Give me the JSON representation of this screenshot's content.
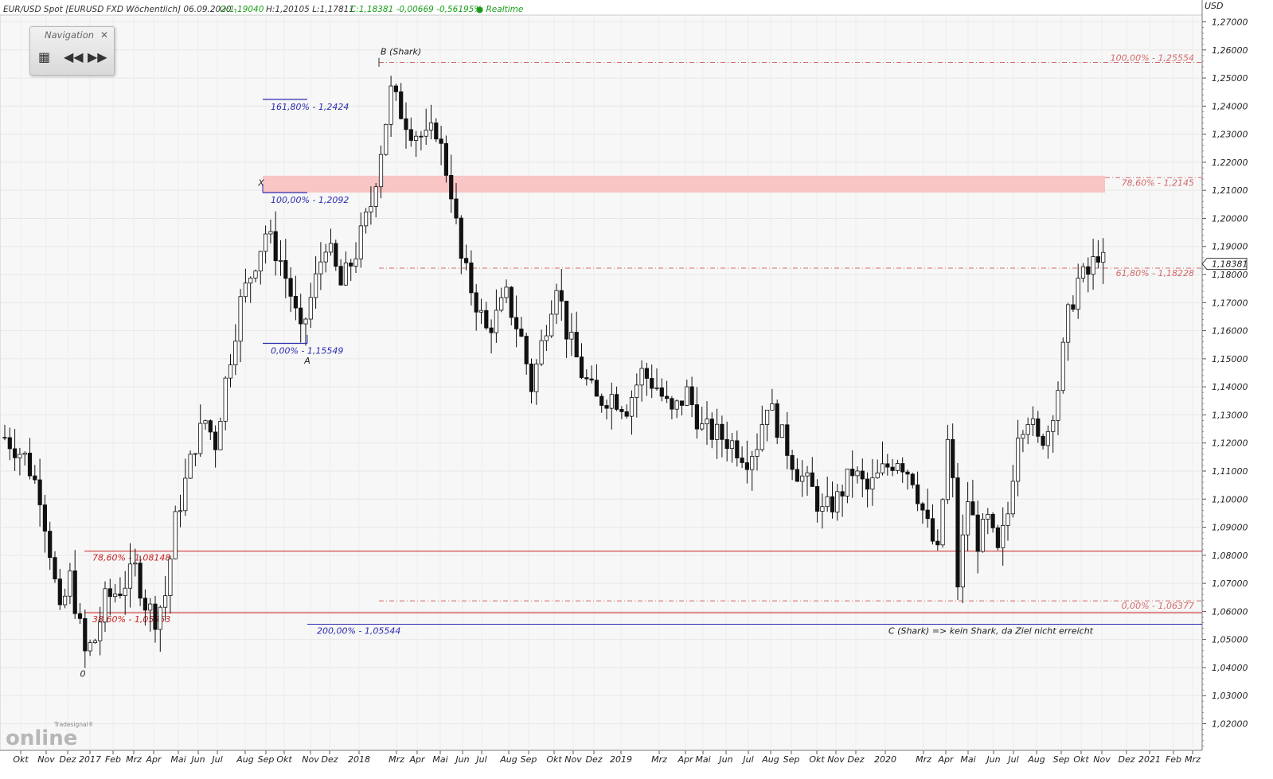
{
  "header": {
    "symbol": "EUR/USD Spot [EURUSD FXD Wöchentlich] 06.09.2020 -",
    "ohlc": "O:1,19040",
    "hl": "H:1,20105 L:1,17811",
    "close": "C:1,18381 -0,00669 -0,56195%",
    "realtime": "● Realtime"
  },
  "navigation": {
    "title": "Navigation",
    "close_icon": "close-icon",
    "buttons": [
      "grid-icon",
      "rewind-icon",
      "fast-forward-icon"
    ]
  },
  "logo": {
    "small": "Tradesignal®",
    "big": "online"
  },
  "colors": {
    "up": "#ffffff",
    "down": "#111111",
    "blue": "#2b2bb0",
    "red": "#cc2222",
    "fib": "#d46a6a",
    "zone": "#f9bcbc",
    "price_green": "#1a9e1a"
  },
  "chart_data": {
    "type": "candlestick",
    "timeframe": "weekly",
    "ylabel": "USD",
    "ylim": [
      1.015,
      1.275
    ],
    "y_ticks": [
      "1,27000",
      "1,26000",
      "1,25000",
      "1,24000",
      "1,23000",
      "1,22000",
      "1,21000",
      "1,20000",
      "1,19000",
      "1,18000",
      "1,17000",
      "1,16000",
      "1,15000",
      "1,14000",
      "1,13000",
      "1,12000",
      "1,11000",
      "1,10000",
      "1,09000",
      "1,08000",
      "1,07000",
      "1,06000",
      "1,05000",
      "1,04000",
      "1,03000",
      "1,02000"
    ],
    "last_price": "1,18381",
    "x_labels": [
      "Okt",
      "Nov",
      "Dez",
      "2017",
      "Feb",
      "Mrz",
      "Apr",
      "Mai",
      "Jun",
      "Jul",
      "Aug",
      "Sep",
      "Okt",
      "Nov",
      "Dez",
      "2018",
      "Mrz",
      "Apr",
      "Mai",
      "Jun",
      "Jul",
      "Aug",
      "Sep",
      "Okt",
      "Nov",
      "Dez",
      "2019",
      "Mrz",
      "Apr",
      "Mai",
      "Jun",
      "Jul",
      "Aug",
      "Sep",
      "Okt",
      "Nov",
      "Dez",
      "2020",
      "Mrz",
      "Apr",
      "Mai",
      "Jun",
      "Jul",
      "Aug",
      "Sep",
      "Okt",
      "Nov",
      "Dez",
      "2021",
      "Feb",
      "Mrz"
    ],
    "anchors": [
      {
        "w": 0,
        "p": 1.122
      },
      {
        "w": 4,
        "p": 1.115
      },
      {
        "w": 7,
        "p": 1.102
      },
      {
        "w": 9,
        "p": 1.082
      },
      {
        "w": 11,
        "p": 1.058
      },
      {
        "w": 13,
        "p": 1.072
      },
      {
        "w": 16,
        "p": 1.045
      },
      {
        "w": 18,
        "p": 1.05
      },
      {
        "w": 20,
        "p": 1.064
      },
      {
        "w": 23,
        "p": 1.068
      },
      {
        "w": 26,
        "p": 1.075
      },
      {
        "w": 28,
        "p": 1.063
      },
      {
        "w": 30,
        "p": 1.058
      },
      {
        "w": 32,
        "p": 1.066
      },
      {
        "w": 34,
        "p": 1.092
      },
      {
        "w": 38,
        "p": 1.12
      },
      {
        "w": 40,
        "p": 1.128
      },
      {
        "w": 42,
        "p": 1.12
      },
      {
        "w": 44,
        "p": 1.142
      },
      {
        "w": 47,
        "p": 1.17
      },
      {
        "w": 50,
        "p": 1.185
      },
      {
        "w": 52,
        "p": 1.195
      },
      {
        "w": 55,
        "p": 1.185
      },
      {
        "w": 57,
        "p": 1.173
      },
      {
        "w": 59,
        "p": 1.158
      },
      {
        "w": 62,
        "p": 1.178
      },
      {
        "w": 64,
        "p": 1.192
      },
      {
        "w": 67,
        "p": 1.176
      },
      {
        "w": 70,
        "p": 1.188
      },
      {
        "w": 73,
        "p": 1.205
      },
      {
        "w": 75,
        "p": 1.225
      },
      {
        "w": 77,
        "p": 1.245
      },
      {
        "w": 79,
        "p": 1.238
      },
      {
        "w": 81,
        "p": 1.232
      },
      {
        "w": 84,
        "p": 1.228
      },
      {
        "w": 86,
        "p": 1.232
      },
      {
        "w": 89,
        "p": 1.21
      },
      {
        "w": 91,
        "p": 1.185
      },
      {
        "w": 94,
        "p": 1.17
      },
      {
        "w": 96,
        "p": 1.16
      },
      {
        "w": 98,
        "p": 1.165
      },
      {
        "w": 100,
        "p": 1.172
      },
      {
        "w": 103,
        "p": 1.157
      },
      {
        "w": 105,
        "p": 1.14
      },
      {
        "w": 107,
        "p": 1.155
      },
      {
        "w": 110,
        "p": 1.178
      },
      {
        "w": 112,
        "p": 1.16
      },
      {
        "w": 115,
        "p": 1.145
      },
      {
        "w": 118,
        "p": 1.135
      },
      {
        "w": 121,
        "p": 1.137
      },
      {
        "w": 124,
        "p": 1.133
      },
      {
        "w": 127,
        "p": 1.145
      },
      {
        "w": 130,
        "p": 1.14
      },
      {
        "w": 133,
        "p": 1.13
      },
      {
        "w": 136,
        "p": 1.138
      },
      {
        "w": 139,
        "p": 1.125
      },
      {
        "w": 142,
        "p": 1.123
      },
      {
        "w": 145,
        "p": 1.12
      },
      {
        "w": 148,
        "p": 1.115
      },
      {
        "w": 150,
        "p": 1.12
      },
      {
        "w": 152,
        "p": 1.135
      },
      {
        "w": 155,
        "p": 1.122
      },
      {
        "w": 158,
        "p": 1.11
      },
      {
        "w": 161,
        "p": 1.103
      },
      {
        "w": 163,
        "p": 1.095
      },
      {
        "w": 166,
        "p": 1.1
      },
      {
        "w": 169,
        "p": 1.11
      },
      {
        "w": 172,
        "p": 1.103
      },
      {
        "w": 175,
        "p": 1.11
      },
      {
        "w": 178,
        "p": 1.115
      },
      {
        "w": 181,
        "p": 1.108
      },
      {
        "w": 184,
        "p": 1.09
      },
      {
        "w": 186,
        "p": 1.08
      },
      {
        "w": 188,
        "p": 1.12
      },
      {
        "w": 189,
        "p": 1.105
      },
      {
        "w": 190,
        "p": 1.07
      },
      {
        "w": 192,
        "p": 1.1
      },
      {
        "w": 194,
        "p": 1.085
      },
      {
        "w": 196,
        "p": 1.092
      },
      {
        "w": 198,
        "p": 1.08
      },
      {
        "w": 200,
        "p": 1.095
      },
      {
        "w": 202,
        "p": 1.125
      },
      {
        "w": 204,
        "p": 1.13
      },
      {
        "w": 206,
        "p": 1.12
      },
      {
        "w": 208,
        "p": 1.125
      },
      {
        "w": 210,
        "p": 1.14
      },
      {
        "w": 212,
        "p": 1.165
      },
      {
        "w": 214,
        "p": 1.178
      },
      {
        "w": 216,
        "p": 1.18
      },
      {
        "w": 218,
        "p": 1.188
      },
      {
        "w": 219,
        "p": 1.184
      }
    ],
    "horizontal_lines": [
      {
        "label": "100,00% - 1,25554",
        "value": 1.25554,
        "style": "dashdot",
        "color": "fib"
      },
      {
        "label": "78,60% - 1,2145",
        "value": 1.2145,
        "style": "dashdot",
        "color": "fib"
      },
      {
        "label": "61,80% - 1,18228",
        "value": 1.18228,
        "style": "dashdot",
        "color": "fib"
      },
      {
        "label": "0,00% - 1,06377",
        "value": 1.06377,
        "style": "dashdot",
        "color": "fib"
      },
      {
        "label": "78,60% - 1,08148",
        "value": 1.08148,
        "style": "solid",
        "color": "red"
      },
      {
        "label": "38,60% - 1,05953",
        "value": 1.05953,
        "style": "solid",
        "color": "red"
      },
      {
        "label": "200,00% - 1,05544",
        "value": 1.05544,
        "style": "solid",
        "color": "blue"
      }
    ],
    "zone": {
      "from": 1.2092,
      "to": 1.2152
    },
    "blue_levels": [
      {
        "label": "161,80% - 1,2424",
        "value": 1.2424
      },
      {
        "label": "100,00% - 1,2092",
        "value": 1.2092
      },
      {
        "label": "0,00% - 1,15549",
        "value": 1.15549
      }
    ],
    "points": [
      {
        "label": "0",
        "value": 1.037
      },
      {
        "label": "X",
        "value": 1.2105
      },
      {
        "label": "A",
        "value": 1.1485
      },
      {
        "label": "B (Shark)",
        "value": 1.2572
      }
    ],
    "note": "C (Shark) => kein Shark, da Ziel nicht erreicht"
  }
}
